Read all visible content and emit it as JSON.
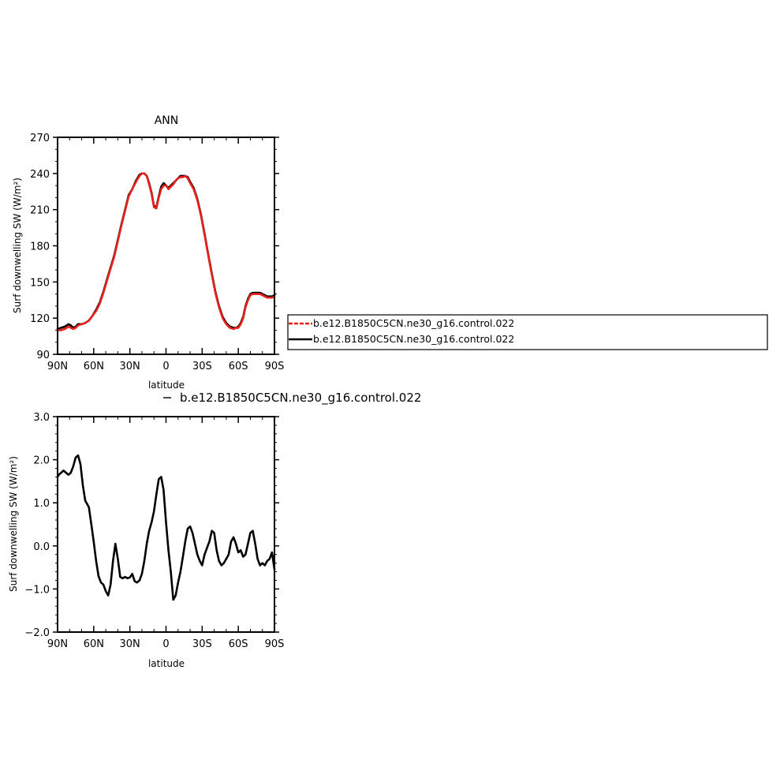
{
  "chart_data": [
    {
      "type": "line",
      "title": "ANN",
      "xlabel": "latitude",
      "ylabel": "Surf downwelling SW (W/m²)",
      "xlim": [
        90,
        -90
      ],
      "ylim": [
        90,
        270
      ],
      "x_ticks": [
        90,
        60,
        30,
        0,
        -30,
        -60,
        -90
      ],
      "x_tick_labels": [
        "90N",
        "60N",
        "30N",
        "0",
        "30S",
        "60S",
        "90S"
      ],
      "y_ticks": [
        90,
        120,
        150,
        180,
        210,
        240,
        270
      ],
      "y_tick_labels": [
        "90",
        "120",
        "150",
        "180",
        "210",
        "240",
        "270"
      ],
      "legend": {
        "placement": "right",
        "entries": [
          {
            "label": "b.e12.B1850C5CN.ne30_g16.control.022",
            "color": "#e8211b",
            "style": "dashed"
          },
          {
            "label": "b.e12.B1850C5CN.ne30_g16.control.022",
            "color": "#000000",
            "style": "solid"
          }
        ]
      },
      "series": [
        {
          "color": "#000000",
          "x": [
            90,
            87,
            84,
            81,
            79,
            77,
            75,
            73,
            70,
            67,
            64,
            61,
            58,
            55,
            52,
            49,
            46,
            43,
            40,
            37,
            34,
            31,
            28,
            25,
            22,
            20,
            18,
            16,
            14,
            12,
            10,
            8,
            6,
            4,
            2,
            0,
            -2,
            -4,
            -6,
            -8,
            -10,
            -12,
            -14,
            -16,
            -18,
            -20,
            -23,
            -26,
            -29,
            -32,
            -35,
            -38,
            -41,
            -44,
            -47,
            -50,
            -53,
            -56,
            -58,
            -60,
            -62,
            -64,
            -66,
            -68,
            -70,
            -72,
            -74,
            -76,
            -78,
            -80,
            -82,
            -84,
            -86,
            -88,
            -90
          ],
          "y": [
            111,
            112,
            113,
            115,
            114,
            112,
            113,
            115,
            115,
            116,
            118,
            122,
            127,
            133,
            142,
            152,
            162,
            172,
            185,
            198,
            210,
            222,
            227,
            234,
            239,
            240,
            240,
            238,
            232,
            224,
            213,
            212,
            221,
            229,
            232,
            230,
            228,
            230,
            232,
            234,
            236,
            238,
            238,
            238,
            237,
            233,
            228,
            219,
            206,
            190,
            173,
            157,
            142,
            130,
            121,
            116,
            113,
            112,
            112,
            113,
            116,
            121,
            130,
            136,
            140,
            141,
            141,
            141,
            141,
            140,
            139,
            138,
            138,
            138,
            139
          ]
        },
        {
          "color": "#e8211b",
          "x": [
            90,
            87,
            84,
            81,
            79,
            77,
            75,
            73,
            70,
            67,
            64,
            61,
            58,
            55,
            52,
            49,
            46,
            43,
            40,
            37,
            34,
            31,
            28,
            25,
            22,
            20,
            18,
            16,
            14,
            12,
            10,
            8,
            6,
            4,
            2,
            0,
            -2,
            -4,
            -6,
            -8,
            -10,
            -12,
            -14,
            -16,
            -18,
            -20,
            -23,
            -26,
            -29,
            -32,
            -35,
            -38,
            -41,
            -44,
            -47,
            -50,
            -53,
            -56,
            -58,
            -60,
            -62,
            -64,
            -66,
            -68,
            -70,
            -72,
            -74,
            -76,
            -78,
            -80,
            -82,
            -84,
            -86,
            -88,
            -90
          ],
          "y": [
            110,
            110,
            111,
            113,
            112,
            111,
            112,
            114,
            115,
            116,
            118,
            122,
            126,
            132,
            141,
            151,
            161,
            171,
            184,
            197,
            209,
            221,
            227,
            233,
            238,
            240,
            240,
            238,
            231,
            223,
            212,
            211,
            220,
            227,
            230,
            230,
            227,
            229,
            231,
            234,
            236,
            237,
            237,
            238,
            236,
            232,
            227,
            218,
            205,
            189,
            172,
            156,
            141,
            129,
            120,
            115,
            112,
            111,
            112,
            112,
            115,
            120,
            129,
            135,
            139,
            140,
            140,
            140,
            140,
            139,
            138,
            137,
            137,
            137,
            138
          ]
        }
      ]
    },
    {
      "type": "line",
      "title": "",
      "xlabel": "latitude",
      "ylabel": "Surf downwelling SW (W/m²)",
      "xlim": [
        90,
        -90
      ],
      "ylim": [
        -2.0,
        3.0
      ],
      "x_ticks": [
        90,
        60,
        30,
        0,
        -30,
        -60,
        -90
      ],
      "x_tick_labels": [
        "90N",
        "60N",
        "30N",
        "0",
        "30S",
        "60S",
        "90S"
      ],
      "y_ticks": [
        -2.0,
        -1.0,
        0.0,
        1.0,
        2.0,
        3.0
      ],
      "y_tick_labels": [
        "−2.0",
        "−1.0",
        "0.0",
        "1.0",
        "2.0",
        "3.0"
      ],
      "legend": {
        "placement": "top",
        "entries": [
          {
            "label": "b.e12.B1850C5CN.ne30_g16.control.022",
            "color": "#000000",
            "style": "solid"
          }
        ]
      },
      "series": [
        {
          "color": "#000000",
          "x": [
            90,
            89,
            87,
            85,
            83,
            81,
            79,
            77,
            75,
            73,
            71,
            69,
            67,
            64,
            62,
            60,
            58,
            56,
            54,
            52,
            50,
            48,
            46,
            44,
            42,
            40,
            38,
            36,
            34,
            32,
            30,
            28,
            26,
            24,
            22,
            20,
            18,
            16,
            14,
            12,
            10,
            8,
            6,
            4,
            2,
            0,
            -2,
            -4,
            -6,
            -8,
            -10,
            -12,
            -14,
            -16,
            -18,
            -20,
            -22,
            -24,
            -26,
            -28,
            -30,
            -32,
            -34,
            -36,
            -38,
            -40,
            -42,
            -44,
            -46,
            -48,
            -50,
            -52,
            -54,
            -56,
            -58,
            -60,
            -62,
            -64,
            -66,
            -68,
            -70,
            -72,
            -74,
            -76,
            -78,
            -80,
            -82,
            -84,
            -86,
            -88,
            -90
          ],
          "y": [
            1.6,
            1.65,
            1.7,
            1.75,
            1.7,
            1.65,
            1.7,
            1.85,
            2.05,
            2.1,
            1.9,
            1.4,
            1.05,
            0.9,
            0.5,
            0.1,
            -0.35,
            -0.7,
            -0.85,
            -0.9,
            -1.05,
            -1.15,
            -0.9,
            -0.35,
            0.05,
            -0.3,
            -0.72,
            -0.75,
            -0.72,
            -0.75,
            -0.73,
            -0.65,
            -0.82,
            -0.85,
            -0.8,
            -0.65,
            -0.35,
            0.05,
            0.35,
            0.55,
            0.8,
            1.2,
            1.55,
            1.6,
            1.3,
            0.55,
            -0.1,
            -0.6,
            -1.25,
            -1.15,
            -0.85,
            -0.6,
            -0.25,
            0.1,
            0.4,
            0.45,
            0.3,
            0.05,
            -0.2,
            -0.35,
            -0.45,
            -0.2,
            -0.05,
            0.1,
            0.35,
            0.3,
            -0.1,
            -0.35,
            -0.45,
            -0.4,
            -0.3,
            -0.2,
            0.1,
            0.2,
            0.05,
            -0.15,
            -0.1,
            -0.25,
            -0.2,
            0.05,
            0.3,
            0.35,
            0.05,
            -0.3,
            -0.45,
            -0.4,
            -0.45,
            -0.35,
            -0.3,
            -0.15,
            -0.55
          ]
        }
      ]
    }
  ]
}
